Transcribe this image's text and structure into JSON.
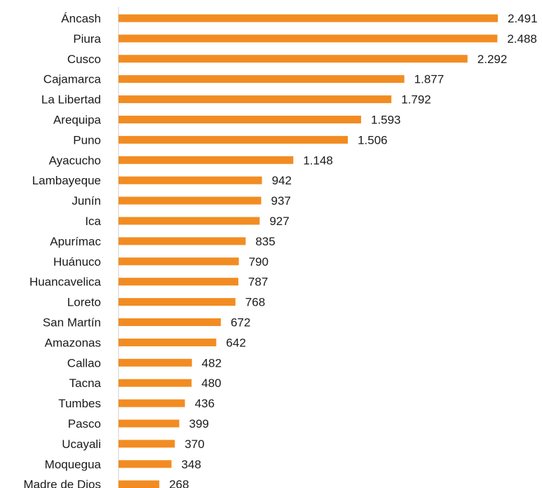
{
  "chart_data": {
    "type": "bar",
    "orientation": "horizontal",
    "categories": [
      "Áncash",
      "Piura",
      "Cusco",
      "Cajamarca",
      "La Libertad",
      "Arequipa",
      "Puno",
      "Ayacucho",
      "Lambayeque",
      "Junín",
      "Ica",
      "Apurímac",
      "Huánuco",
      "Huancavelica",
      "Loreto",
      "San Martín",
      "Amazonas",
      "Callao",
      "Tacna",
      "Tumbes",
      "Pasco",
      "Ucayali",
      "Moquegua",
      "Madre de Dios"
    ],
    "values": [
      2491,
      2488,
      2292,
      1877,
      1792,
      1593,
      1506,
      1148,
      942,
      937,
      927,
      835,
      790,
      787,
      768,
      672,
      642,
      482,
      480,
      436,
      399,
      370,
      348,
      268
    ],
    "value_labels": [
      "2.491",
      "2.488",
      "2.292",
      "1.877",
      "1.792",
      "1.593",
      "1.506",
      "1.148",
      "942",
      "937",
      "927",
      "835",
      "790",
      "787",
      "768",
      "672",
      "642",
      "482",
      "480",
      "436",
      "399",
      "370",
      "348",
      "268"
    ],
    "xlim": [
      0,
      2491
    ],
    "grid": false,
    "legend": "none",
    "bar_color": "#f28c22",
    "axis_color": "#cfcfcf",
    "text_color": "#1a1a1a"
  }
}
